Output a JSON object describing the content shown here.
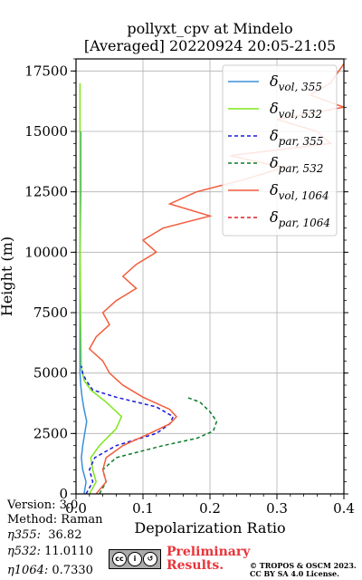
{
  "chart_data": {
    "type": "line",
    "title": "pollyxt_cpv at Mindelo",
    "subtitle": "[Averaged] 20220924 20:05-21:05",
    "xlabel": "Depolarization Ratio",
    "ylabel": "Height (m)",
    "xlim": [
      0,
      0.4
    ],
    "ylim": [
      0,
      18000
    ],
    "xticks": [
      0.0,
      0.1,
      0.2,
      0.3,
      0.4
    ],
    "xtick_labels": [
      "0.0",
      "0.1",
      "0.2",
      "0.3",
      "0.4"
    ],
    "yticks": [
      0,
      2500,
      5000,
      7500,
      10000,
      12500,
      15000,
      17500
    ],
    "ytick_labels": [
      "0",
      "2500",
      "5000",
      "7500",
      "10000",
      "12500",
      "15000",
      "17500"
    ],
    "grid": true,
    "legend_position": "top-right",
    "series": [
      {
        "name": "vol_355",
        "label_main": "δ",
        "label_sub": "vol, 355",
        "color": "#3a8fd9",
        "style": "solid",
        "x": [
          0.012,
          0.015,
          0.01,
          0.008,
          0.01,
          0.013,
          0.016,
          0.012,
          0.009,
          0.007,
          0.006,
          0.006,
          0.006,
          0.007,
          0.007
        ],
        "y": [
          0,
          500,
          1000,
          1500,
          2000,
          2500,
          3000,
          3500,
          4000,
          4500,
          5000,
          7500,
          10000,
          12500,
          15000
        ]
      },
      {
        "name": "vol_532",
        "label_main": "δ",
        "label_sub": "vol, 532",
        "color": "#7ee61c",
        "style": "solid",
        "x": [
          0.02,
          0.03,
          0.025,
          0.022,
          0.035,
          0.06,
          0.068,
          0.045,
          0.022,
          0.012,
          0.008,
          0.007,
          0.006,
          0.006,
          0.006
        ],
        "y": [
          0,
          500,
          1000,
          1500,
          2000,
          2700,
          3200,
          3800,
          4300,
          4700,
          5200,
          7000,
          10000,
          13000,
          17000
        ]
      },
      {
        "name": "par_355",
        "label_main": "δ",
        "label_sub": "par, 355",
        "color": "#1a1ad9",
        "style": "dashed",
        "x": [
          0.015,
          0.025,
          0.02,
          0.028,
          0.06,
          0.12,
          0.14,
          0.145,
          0.12,
          0.06,
          0.025,
          0.015,
          0.01,
          0.008
        ],
        "y": [
          0,
          500,
          1000,
          1500,
          2000,
          2500,
          2900,
          3200,
          3600,
          4000,
          4300,
          4700,
          5000,
          5300
        ]
      },
      {
        "name": "par_532",
        "label_main": "δ",
        "label_sub": "par, 532",
        "color": "#0c7a2a",
        "style": "dashed",
        "x": [
          0.035,
          0.045,
          0.04,
          0.06,
          0.13,
          0.18,
          0.205,
          0.21,
          0.2,
          0.185,
          0.165
        ],
        "y": [
          0,
          500,
          1000,
          1500,
          2000,
          2300,
          2600,
          3000,
          3400,
          3800,
          4000
        ]
      },
      {
        "name": "vol_1064",
        "label_main": "δ",
        "label_sub": "vol, 1064",
        "color": "#f25c3c",
        "style": "solid",
        "x": [
          0.03,
          0.045,
          0.04,
          0.045,
          0.07,
          0.11,
          0.14,
          0.15,
          0.14,
          0.1,
          0.07,
          0.05,
          0.04,
          0.02,
          0.03,
          0.05,
          0.04,
          0.06,
          0.09,
          0.07,
          0.09,
          0.12,
          0.1,
          0.13,
          0.2,
          0.14,
          0.18,
          0.25,
          0.31,
          0.23,
          0.38,
          0.36,
          0.3,
          0.4,
          0.35,
          0.38,
          0.4
        ],
        "y": [
          0,
          500,
          1000,
          1500,
          2000,
          2500,
          2900,
          3200,
          3500,
          4000,
          4500,
          5000,
          5500,
          6000,
          6500,
          7000,
          7500,
          8000,
          8500,
          9000,
          9500,
          10000,
          10500,
          11000,
          11500,
          12000,
          12500,
          13000,
          13500,
          14000,
          14500,
          15000,
          15500,
          16000,
          16500,
          17000,
          17800
        ]
      },
      {
        "name": "par_1064",
        "label_main": "δ",
        "label_sub": "par, 1064",
        "color": "#d92020",
        "style": "dashed",
        "x": [
          0.4
        ],
        "y": [
          0
        ]
      }
    ]
  },
  "info": {
    "version": "Version: 3.0",
    "method": "Method: Raman",
    "eta355_label": "η355:",
    "eta355_value": "36.82",
    "eta532_label": "η532:",
    "eta532_value": "11.0110",
    "eta1064_label": "η1064:",
    "eta1064_value": "0.7330"
  },
  "footer": {
    "preliminary_line1": "Preliminary",
    "preliminary_line2": "Results.",
    "copyright_line1": "© TROPOS & OSCM 2023.",
    "copyright_line2": "CC BY SA 4.0 License.",
    "cc_badge_icons": [
      "cc-icon",
      "by-icon",
      "sa-icon"
    ]
  }
}
